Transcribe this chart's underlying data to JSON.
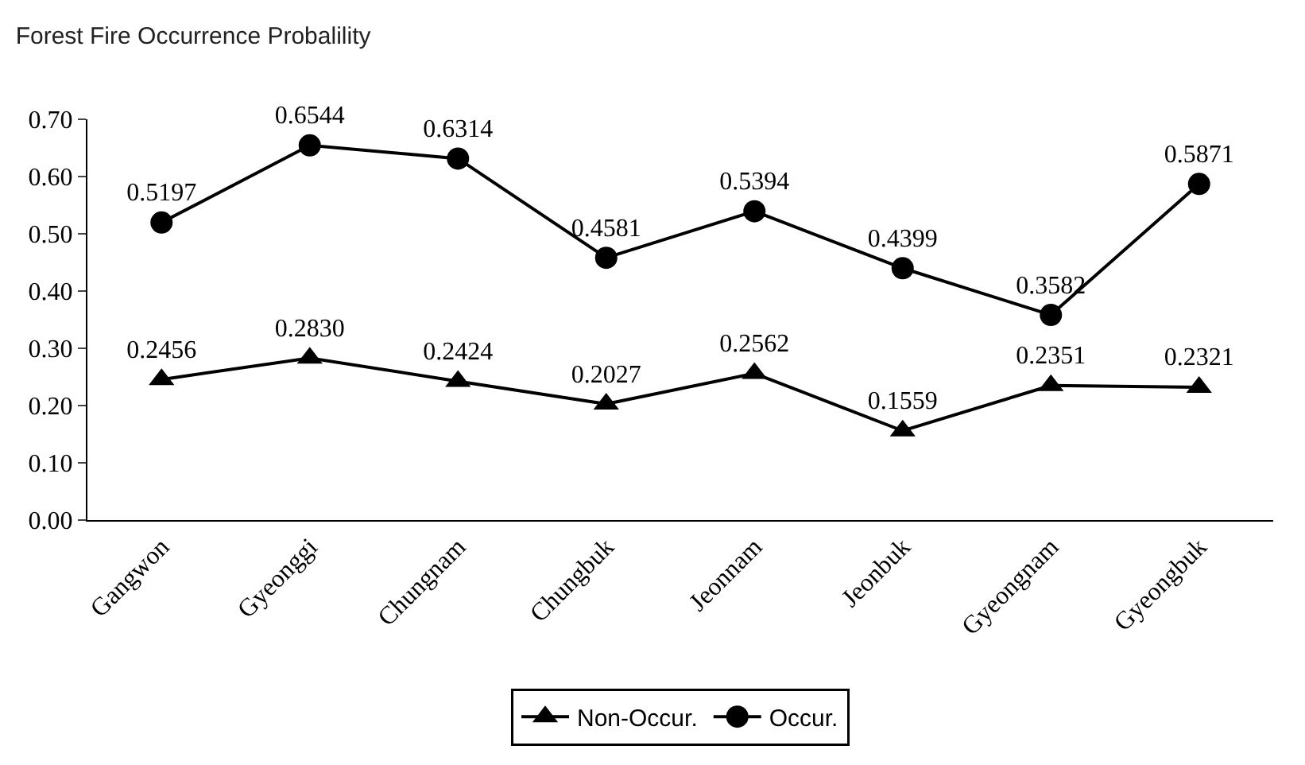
{
  "chart_data": {
    "type": "line",
    "title": "Forest Fire Occurrence Probalility",
    "categories": [
      "Gangwon",
      "Gyeonggi",
      "Chungnam",
      "Chungbuk",
      "Jeonnam",
      "Jeonbuk",
      "Gyeongnam",
      "Gyeongbuk"
    ],
    "series": [
      {
        "name": "Non-Occur.",
        "color": "#000000",
        "marker": "triangle",
        "values": [
          0.2456,
          0.283,
          0.2424,
          0.2027,
          0.2562,
          0.1559,
          0.2351,
          0.2321
        ],
        "value_labels": [
          "0.2456",
          "0.2830",
          "0.2424",
          "0.2027",
          "0.2562",
          "0.1559",
          "0.2351",
          "0.2321"
        ]
      },
      {
        "name": "Occur.",
        "color": "#000000",
        "marker": "circle",
        "values": [
          0.5197,
          0.6544,
          0.6314,
          0.4581,
          0.5394,
          0.4399,
          0.3582,
          0.5871
        ],
        "value_labels": [
          "0.5197",
          "0.6544",
          "0.6314",
          "0.4581",
          "0.5394",
          "0.4399",
          "0.3582",
          "0.5871"
        ]
      }
    ],
    "ylim": [
      0,
      0.7
    ],
    "yticks": [
      {
        "value": 0,
        "label": "0.00"
      },
      {
        "value": 0.1,
        "label": "0.10"
      },
      {
        "value": 0.2,
        "label": "0.20"
      },
      {
        "value": 0.3,
        "label": "0.30"
      },
      {
        "value": 0.4,
        "label": "0.40"
      },
      {
        "value": 0.5,
        "label": "0.50"
      },
      {
        "value": 0.6,
        "label": "0.60"
      },
      {
        "value": 0.7,
        "label": "0.70"
      }
    ],
    "legend": "bottom",
    "line_style": "solid"
  }
}
